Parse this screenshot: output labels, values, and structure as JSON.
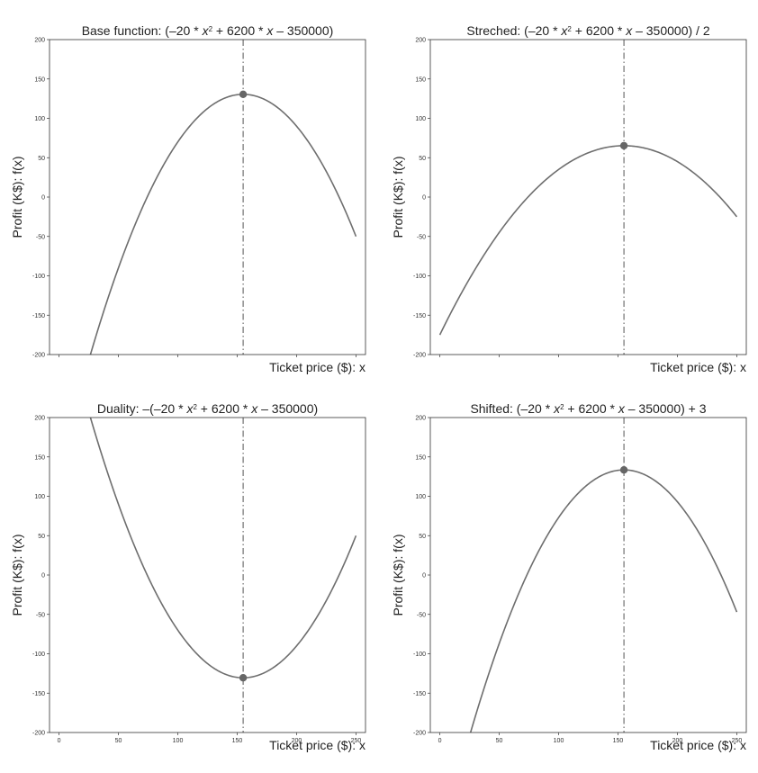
{
  "chart_data": [
    {
      "type": "line",
      "title_parts": [
        "Base function: (–20 * ",
        "x",
        "2",
        " + 6200 * ",
        "x",
        "  – 350000)",
        ""
      ],
      "ylabel": "Profit (K$): f(x)",
      "xlabel": "Ticket price ($): x",
      "ylim": [
        -200,
        200
      ],
      "xlim": [
        -8,
        258
      ],
      "yticks": [
        200,
        150,
        100,
        50,
        0,
        -50,
        -100,
        -150,
        -200
      ],
      "xticks": [
        0,
        50,
        100,
        150,
        200,
        250
      ],
      "show_xtick_labels": false,
      "series": [
        {
          "a": -0.02,
          "b": 6.2,
          "c": -350,
          "x_start": 25,
          "x_end": 250
        }
      ],
      "vertex": {
        "x": 155,
        "y": 130.5
      },
      "vline_x": 155
    },
    {
      "type": "line",
      "title_parts": [
        "Streched: (–20 * ",
        "x",
        "2",
        " + 6200 * ",
        "x",
        "  – 350000)",
        " / 2"
      ],
      "ylabel": "Profit (K$): f(x)",
      "xlabel": "Ticket price ($): x",
      "ylim": [
        -200,
        200
      ],
      "xlim": [
        -8,
        258
      ],
      "yticks": [
        200,
        150,
        100,
        50,
        0,
        -50,
        -100,
        -150,
        -200
      ],
      "xticks": [
        0,
        50,
        100,
        150,
        200,
        250
      ],
      "show_xtick_labels": false,
      "series": [
        {
          "a": -0.01,
          "b": 3.1,
          "c": -175,
          "x_start": 0,
          "x_end": 250
        }
      ],
      "vertex": {
        "x": 155,
        "y": 65.25
      },
      "vline_x": 155
    },
    {
      "type": "line",
      "title_parts": [
        "Duality: –(–20 * ",
        "x",
        "2",
        " + 6200 * ",
        "x",
        "  – 350000)",
        ""
      ],
      "ylabel": "Profit (K$): f(x)",
      "xlabel": "Ticket price ($): x",
      "ylim": [
        -200,
        200
      ],
      "xlim": [
        -8,
        258
      ],
      "yticks": [
        200,
        150,
        100,
        50,
        0,
        -50,
        -100,
        -150,
        -200
      ],
      "xticks": [
        0,
        50,
        100,
        150,
        200,
        250
      ],
      "show_xtick_labels": true,
      "series": [
        {
          "a": 0.02,
          "b": -6.2,
          "c": 350,
          "x_start": 25,
          "x_end": 250
        }
      ],
      "vertex": {
        "x": 155,
        "y": -130.5
      },
      "vline_x": 155
    },
    {
      "type": "line",
      "title_parts": [
        "Shifted: (–20 * ",
        "x",
        "2",
        " + 6200 * ",
        "x",
        "  – 350000)",
        " + 3"
      ],
      "ylabel": "Profit (K$): f(x)",
      "xlabel": "Ticket price ($): x",
      "ylim": [
        -200,
        200
      ],
      "xlim": [
        -8,
        258
      ],
      "yticks": [
        200,
        150,
        100,
        50,
        0,
        -50,
        -100,
        -150,
        -200
      ],
      "xticks": [
        0,
        50,
        100,
        150,
        200,
        250
      ],
      "show_xtick_labels": true,
      "series": [
        {
          "a": -0.02,
          "b": 6.2,
          "c": -347,
          "x_start": 25,
          "x_end": 250
        }
      ],
      "vertex": {
        "x": 155,
        "y": 133.5
      },
      "vline_x": 155
    }
  ],
  "colors": {
    "curve": "#6e6e6e",
    "marker": "#666666"
  }
}
